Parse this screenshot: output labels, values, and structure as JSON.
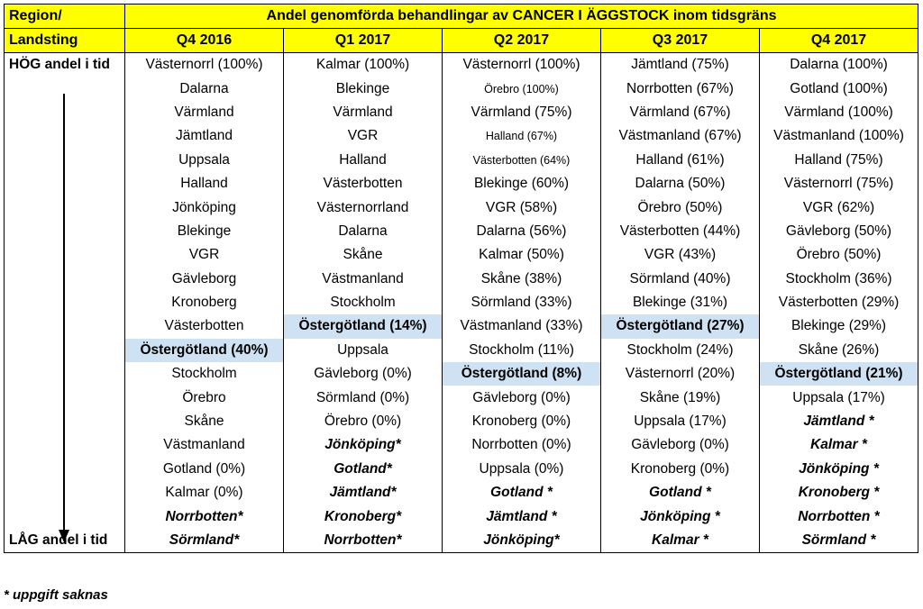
{
  "header": {
    "region_label_top": "Region/",
    "region_label_bottom": "Landsting",
    "title": "Andel genomförda behandlingar av CANCER I ÄGGSTOCK inom tidsgräns",
    "quarters": [
      "Q4 2016",
      "Q1 2017",
      "Q2 2017",
      "Q3 2017",
      "Q4 2017"
    ]
  },
  "row_labels": {
    "high": "HÖG andel i tid",
    "low": "LÅG andel i tid"
  },
  "columns": [
    [
      "Västernorrl (100%)",
      "Dalarna",
      "Värmland",
      "Jämtland",
      "Uppsala",
      "Halland",
      "Jönköping",
      "Blekinge",
      "VGR",
      "Gävleborg",
      "Kronoberg",
      "Västerbotten",
      "Östergötland (40%)",
      "Stockholm",
      "Örebro",
      "Skåne",
      "Västmanland",
      "Gotland (0%)",
      "Kalmar (0%)",
      "Norrbotten*",
      "Sörmland*"
    ],
    [
      "Kalmar (100%)",
      "Blekinge",
      "Värmland",
      "VGR",
      "Halland",
      "Västerbotten",
      "Västernorrland",
      "Dalarna",
      "Skåne",
      "Västmanland",
      "Stockholm",
      "Östergötland (14%)",
      "Uppsala",
      "Gävleborg (0%)",
      "Sörmland (0%)",
      "Örebro (0%)",
      "Jönköping*",
      "Gotland*",
      "Jämtland*",
      "Kronoberg*",
      "Norrbotten*"
    ],
    [
      "Västernorrl (100%)",
      "Örebro (100%)",
      "Värmland (75%)",
      "Halland (67%)",
      "Västerbotten (64%)",
      "Blekinge (60%)",
      "VGR (58%)",
      "Dalarna (56%)",
      "Kalmar (50%)",
      "Skåne (38%)",
      "Sörmland (33%)",
      "Västmanland (33%)",
      "Stockholm (11%)",
      "Östergötland (8%)",
      "Gävleborg (0%)",
      "Kronoberg (0%)",
      "Norrbotten (0%)",
      "Uppsala (0%)",
      "Gotland *",
      "Jämtland *",
      "Jönköping*"
    ],
    [
      "Jämtland (75%)",
      "Norrbotten (67%)",
      "Värmland (67%)",
      "Västmanland (67%)",
      "Halland (61%)",
      "Dalarna (50%)",
      "Örebro (50%)",
      "Västerbotten (44%)",
      "VGR (43%)",
      "Sörmland (40%)",
      "Blekinge (31%)",
      "Östergötland (27%)",
      "Stockholm (24%)",
      "Västernorrl (20%)",
      "Skåne (19%)",
      "Uppsala (17%)",
      "Gävleborg (0%)",
      "Kronoberg (0%)",
      "Gotland *",
      "Jönköping *",
      "Kalmar *"
    ],
    [
      "Dalarna (100%)",
      "Gotland (100%)",
      "Värmland (100%)",
      "Västmanland (100%)",
      "Halland (75%)",
      "Västernorrl (75%)",
      "VGR (62%)",
      "Gävleborg (50%)",
      "Örebro (50%)",
      "Stockholm (36%)",
      "Västerbotten (29%)",
      "Blekinge (29%)",
      "Skåne (26%)",
      "Östergötland (21%)",
      "Uppsala (17%)",
      "Jämtland *",
      "Kalmar *",
      "Jönköping *",
      "Kronoberg *",
      "Norrbotten *",
      "Sörmland *"
    ]
  ],
  "highlight_rows": [
    12,
    11,
    13,
    11,
    13
  ],
  "missing_from": [
    19,
    16,
    18,
    18,
    15
  ],
  "small_cells": [
    [
      2,
      1
    ],
    [
      2,
      3
    ],
    [
      2,
      4
    ]
  ],
  "footnote": "* uppgift saknas",
  "colors": {
    "header": "#ffff00",
    "highlight": "#cfe2f3"
  }
}
